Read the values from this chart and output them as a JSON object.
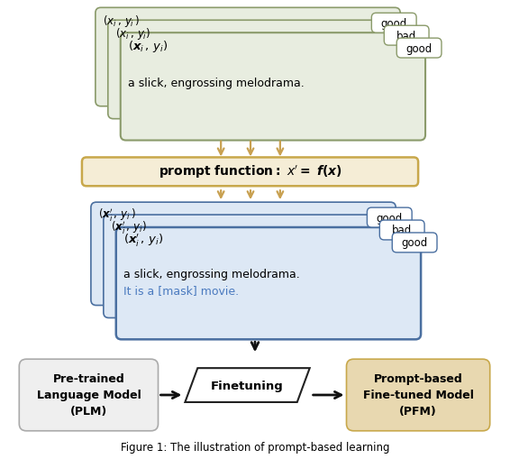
{
  "fig_width": 5.66,
  "fig_height": 5.1,
  "dpi": 100,
  "bg_color": "#ffffff",
  "top_cards_color": "#e8ede0",
  "top_cards_edge": "#8a9a6a",
  "prompt_box_color": "#f5edd6",
  "prompt_box_edge": "#c8a84b",
  "bottom_cards_color": "#dde8f5",
  "bottom_cards_edge": "#4a6fa0",
  "label_box_color": "#ffffff",
  "plm_box_color": "#efefef",
  "plm_box_edge": "#aaaaaa",
  "pfm_box_color": "#e8d8b0",
  "pfm_box_edge": "#c8a84b",
  "finetuning_color": "#ffffff",
  "finetuning_edge": "#222222",
  "arrow_color_gold": "#c8a050",
  "arrow_color_black": "#111111",
  "mask_text_color": "#4a7abf",
  "caption_text": "Figure 1: The illustration of prompt-based learning",
  "top_label1": "good",
  "top_label2": "bad",
  "top_label3": "good",
  "bottom_label1": "good",
  "bottom_label2": "bad",
  "bottom_label3": "good",
  "top_body_text": "a slick, engrossing melodrama.",
  "bottom_body_text1": "a slick, engrossing melodrama.",
  "bottom_body_text2": "It is a [mask] movie.",
  "plm_text": "Pre-trained\nLanguage Model\n(PLM)",
  "pfm_text": "Prompt-based\nFine-tuned Model\n(PFM)",
  "finetune_text": "Finetuning"
}
